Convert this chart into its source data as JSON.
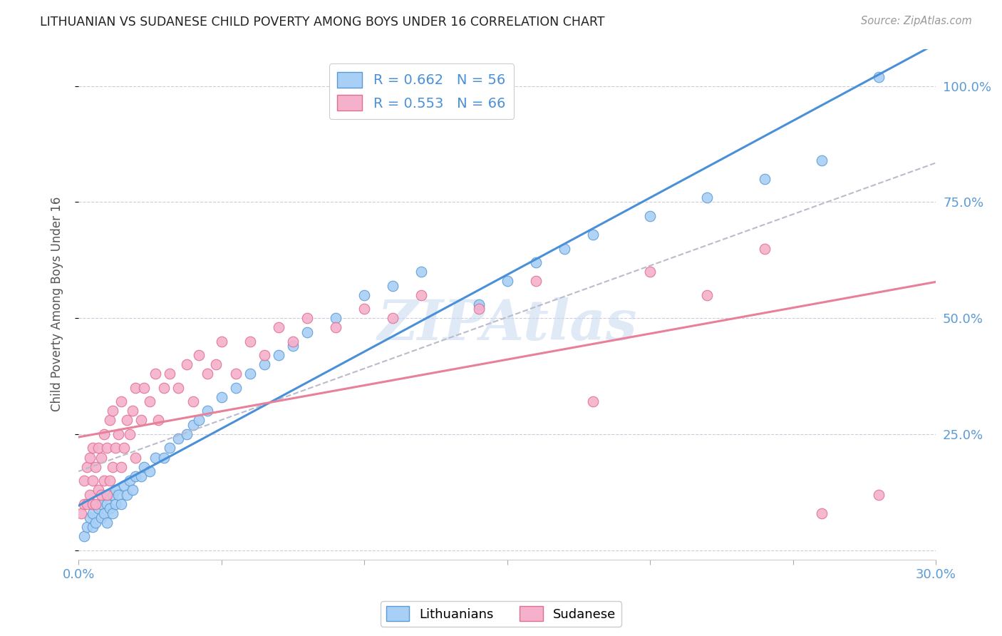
{
  "title": "LITHUANIAN VS SUDANESE CHILD POVERTY AMONG BOYS UNDER 16 CORRELATION CHART",
  "source": "Source: ZipAtlas.com",
  "ylabel": "Child Poverty Among Boys Under 16",
  "blue_R": 0.662,
  "blue_N": 56,
  "pink_R": 0.553,
  "pink_N": 66,
  "blue_color": "#A8CFF5",
  "pink_color": "#F5B0CC",
  "blue_edge_color": "#5B9BD5",
  "pink_edge_color": "#E07090",
  "blue_line_color": "#4A90D9",
  "pink_line_color": "#E8809A",
  "gray_dash_color": "#BBBBCC",
  "watermark": "ZIPAtlas",
  "watermark_color": "#C8D8F0",
  "legend_labels": [
    "Lithuanians",
    "Sudanese"
  ],
  "x_min": 0.0,
  "x_max": 0.3,
  "y_min": -0.02,
  "y_max": 1.08,
  "blue_scatter_x": [
    0.002,
    0.003,
    0.004,
    0.005,
    0.005,
    0.006,
    0.007,
    0.008,
    0.008,
    0.009,
    0.01,
    0.01,
    0.011,
    0.012,
    0.012,
    0.013,
    0.013,
    0.014,
    0.015,
    0.016,
    0.017,
    0.018,
    0.019,
    0.02,
    0.022,
    0.023,
    0.025,
    0.027,
    0.03,
    0.032,
    0.035,
    0.038,
    0.04,
    0.042,
    0.045,
    0.05,
    0.055,
    0.06,
    0.065,
    0.07,
    0.075,
    0.08,
    0.09,
    0.1,
    0.11,
    0.12,
    0.14,
    0.15,
    0.16,
    0.17,
    0.18,
    0.2,
    0.22,
    0.24,
    0.26,
    0.28
  ],
  "blue_scatter_y": [
    0.03,
    0.05,
    0.07,
    0.05,
    0.08,
    0.06,
    0.09,
    0.07,
    0.1,
    0.08,
    0.06,
    0.1,
    0.09,
    0.08,
    0.12,
    0.1,
    0.13,
    0.12,
    0.1,
    0.14,
    0.12,
    0.15,
    0.13,
    0.16,
    0.16,
    0.18,
    0.17,
    0.2,
    0.2,
    0.22,
    0.24,
    0.25,
    0.27,
    0.28,
    0.3,
    0.33,
    0.35,
    0.38,
    0.4,
    0.42,
    0.44,
    0.47,
    0.5,
    0.55,
    0.57,
    0.6,
    0.53,
    0.58,
    0.62,
    0.65,
    0.68,
    0.72,
    0.76,
    0.8,
    0.84,
    1.02
  ],
  "pink_scatter_x": [
    0.001,
    0.002,
    0.002,
    0.003,
    0.003,
    0.004,
    0.004,
    0.005,
    0.005,
    0.005,
    0.006,
    0.006,
    0.007,
    0.007,
    0.008,
    0.008,
    0.009,
    0.009,
    0.01,
    0.01,
    0.011,
    0.011,
    0.012,
    0.012,
    0.013,
    0.014,
    0.015,
    0.015,
    0.016,
    0.017,
    0.018,
    0.019,
    0.02,
    0.02,
    0.022,
    0.023,
    0.025,
    0.027,
    0.028,
    0.03,
    0.032,
    0.035,
    0.038,
    0.04,
    0.042,
    0.045,
    0.048,
    0.05,
    0.055,
    0.06,
    0.065,
    0.07,
    0.075,
    0.08,
    0.09,
    0.1,
    0.11,
    0.12,
    0.14,
    0.16,
    0.18,
    0.2,
    0.22,
    0.24,
    0.26,
    0.28
  ],
  "pink_scatter_y": [
    0.08,
    0.1,
    0.15,
    0.1,
    0.18,
    0.12,
    0.2,
    0.1,
    0.15,
    0.22,
    0.1,
    0.18,
    0.13,
    0.22,
    0.12,
    0.2,
    0.15,
    0.25,
    0.12,
    0.22,
    0.15,
    0.28,
    0.18,
    0.3,
    0.22,
    0.25,
    0.18,
    0.32,
    0.22,
    0.28,
    0.25,
    0.3,
    0.2,
    0.35,
    0.28,
    0.35,
    0.32,
    0.38,
    0.28,
    0.35,
    0.38,
    0.35,
    0.4,
    0.32,
    0.42,
    0.38,
    0.4,
    0.45,
    0.38,
    0.45,
    0.42,
    0.48,
    0.45,
    0.5,
    0.48,
    0.52,
    0.5,
    0.55,
    0.52,
    0.58,
    0.32,
    0.6,
    0.55,
    0.65,
    0.08,
    0.12
  ]
}
